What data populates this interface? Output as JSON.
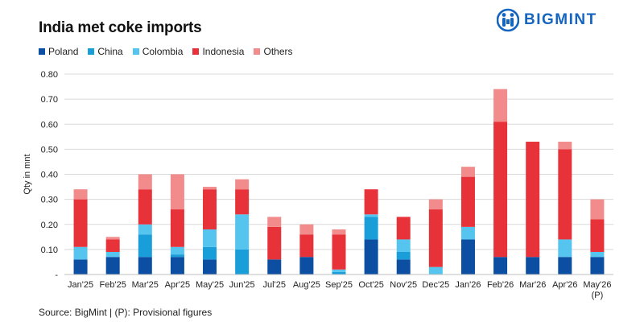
{
  "title": "India met coke imports",
  "logo": {
    "text": "BIGMINT"
  },
  "source": "Source: BigMint | (P): Provisional figures",
  "colors": {
    "Poland": "#0b4ea2",
    "China": "#1a9ed9",
    "Colombia": "#55c4ee",
    "Indonesia": "#e8323a",
    "Others": "#f28b8b",
    "brand": "#1565c0"
  },
  "chart_data": {
    "type": "bar",
    "stacked": true,
    "ylabel": "Qty in mnt",
    "ylim": [
      0,
      0.8
    ],
    "y_ticks": [
      {
        "value": 0,
        "label": "-"
      },
      {
        "value": 0.1,
        "label": "0.10"
      },
      {
        "value": 0.2,
        "label": "0.20"
      },
      {
        "value": 0.3,
        "label": "0.30"
      },
      {
        "value": 0.4,
        "label": "0.40"
      },
      {
        "value": 0.5,
        "label": "0.50"
      },
      {
        "value": 0.6,
        "label": "0.60"
      },
      {
        "value": 0.7,
        "label": "0.70"
      },
      {
        "value": 0.8,
        "label": "0.80"
      }
    ],
    "grid": true,
    "legend_position": "top-left",
    "categories": [
      "Jan'25",
      "Feb'25",
      "Mar'25",
      "Apr'25",
      "May'25",
      "Jun'25",
      "Jul'25",
      "Aug'25",
      "Sep'25",
      "Oct'25",
      "Nov'25",
      "Dec'25",
      "Jan'26",
      "Feb'26",
      "Mar'26",
      "Apr'26",
      "May'26"
    ],
    "category_sublabels": [
      "",
      "",
      "",
      "",
      "",
      "",
      "",
      "",
      "",
      "",
      "",
      "",
      "",
      "",
      "",
      "",
      "(P)"
    ],
    "series": [
      {
        "name": "Poland",
        "values": [
          0.06,
          0.07,
          0.07,
          0.07,
          0.06,
          0.0,
          0.06,
          0.07,
          0.0,
          0.14,
          0.06,
          0.0,
          0.14,
          0.07,
          0.07,
          0.07,
          0.07
        ]
      },
      {
        "name": "China",
        "values": [
          0.0,
          0.0,
          0.09,
          0.01,
          0.05,
          0.1,
          0.0,
          0.0,
          0.01,
          0.09,
          0.03,
          0.0,
          0.0,
          0.0,
          0.0,
          0.0,
          0.0
        ]
      },
      {
        "name": "Colombia",
        "values": [
          0.05,
          0.02,
          0.04,
          0.03,
          0.07,
          0.14,
          0.0,
          0.0,
          0.01,
          0.01,
          0.05,
          0.03,
          0.05,
          0.0,
          0.0,
          0.07,
          0.02
        ]
      },
      {
        "name": "Indonesia",
        "values": [
          0.19,
          0.05,
          0.14,
          0.15,
          0.16,
          0.1,
          0.13,
          0.09,
          0.14,
          0.1,
          0.09,
          0.23,
          0.2,
          0.54,
          0.46,
          0.36,
          0.13
        ]
      },
      {
        "name": "Others",
        "values": [
          0.04,
          0.01,
          0.06,
          0.14,
          0.01,
          0.04,
          0.04,
          0.04,
          0.02,
          0.0,
          0.0,
          0.04,
          0.04,
          0.13,
          0.0,
          0.03,
          0.08
        ]
      }
    ]
  }
}
